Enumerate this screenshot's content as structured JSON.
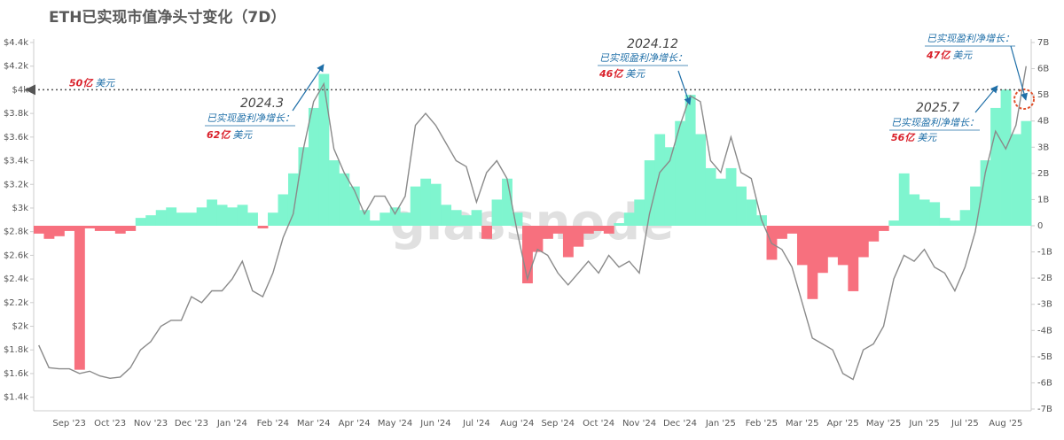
{
  "chart_data": {
    "type": "combo",
    "title": "ETH已实现市值净头寸变化（7D）",
    "watermark": "glassnode",
    "categories": [
      null,
      null,
      null,
      "Sep '23",
      null,
      null,
      null,
      "Oct '23",
      null,
      null,
      null,
      "Nov '23",
      null,
      null,
      null,
      "Dec '23",
      null,
      null,
      null,
      "Jan '24",
      null,
      null,
      null,
      "Feb '24",
      null,
      null,
      null,
      "Mar '24",
      null,
      null,
      null,
      "Apr '24",
      null,
      null,
      null,
      "May '24",
      null,
      null,
      null,
      "Jun '24",
      null,
      null,
      null,
      "Jul '24",
      null,
      null,
      null,
      "Aug '24",
      null,
      null,
      null,
      "Sep '24",
      null,
      null,
      null,
      "Oct '24",
      null,
      null,
      null,
      "Nov '24",
      null,
      null,
      null,
      "Dec '24",
      null,
      null,
      null,
      "Jan '25",
      null,
      null,
      null,
      "Feb '25",
      null,
      null,
      null,
      "Mar '25",
      null,
      null,
      null,
      "Apr '25",
      null,
      null,
      null,
      "May '25",
      null,
      null,
      null,
      "Jun '25",
      null,
      null,
      null,
      "Jul '25",
      null,
      null,
      null,
      "Aug '25",
      null,
      null
    ],
    "series": [
      {
        "type": "bar",
        "axis": "y2",
        "color": "#7ff5cf",
        "negative_color": "#f7707e",
        "values": [
          -0.3,
          -0.5,
          -0.4,
          -0.2,
          -5.5,
          -0.1,
          -0.2,
          -0.2,
          -0.3,
          -0.2,
          0.3,
          0.4,
          0.6,
          0.7,
          0.5,
          0.5,
          0.7,
          1.0,
          0.8,
          0.7,
          0.8,
          0.5,
          -0.1,
          0.5,
          1.2,
          2.0,
          3.0,
          4.5,
          5.8,
          2.5,
          2.0,
          1.5,
          0.6,
          0.2,
          0.5,
          0.7,
          0.5,
          1.5,
          1.8,
          1.6,
          0.8,
          0.6,
          0.4,
          0.6,
          -0.5,
          1.0,
          1.8,
          0.5,
          -2.2,
          -1.0,
          -0.5,
          -0.3,
          -1.2,
          -0.8,
          -0.3,
          -0.2,
          -0.3,
          0.1,
          0.5,
          1.0,
          2.5,
          3.5,
          3.0,
          4.0,
          5.0,
          3.5,
          2.2,
          1.8,
          2.2,
          1.5,
          1.0,
          0.4,
          -1.3,
          -0.5,
          -0.3,
          -1.5,
          -2.8,
          -1.8,
          -1.2,
          -1.5,
          -2.5,
          -1.2,
          -0.6,
          -0.2,
          0.2,
          2.0,
          1.2,
          1.0,
          0.9,
          0.3,
          0.2,
          0.6,
          1.5,
          2.5,
          4.5,
          5.2,
          3.5,
          4.0
        ]
      },
      {
        "type": "line",
        "color": "#8a8a8a",
        "values": [
          1840,
          1650,
          1640,
          1640,
          1600,
          1620,
          1580,
          1560,
          1570,
          1650,
          1800,
          1870,
          2000,
          2050,
          2050,
          2250,
          2200,
          2300,
          2300,
          2400,
          2550,
          2300,
          2250,
          2450,
          2750,
          2950,
          3500,
          3900,
          4050,
          3500,
          3300,
          3150,
          2950,
          3100,
          3100,
          2950,
          3100,
          3700,
          3800,
          3700,
          3550,
          3400,
          3350,
          3050,
          3300,
          3400,
          3250,
          2800,
          2400,
          2650,
          2600,
          2450,
          2350,
          2450,
          2550,
          2450,
          2600,
          2500,
          2550,
          2450,
          2950,
          3300,
          3400,
          3700,
          3950,
          3900,
          3400,
          3300,
          3600,
          3300,
          3250,
          2900,
          2700,
          2650,
          2500,
          2200,
          1900,
          1850,
          1800,
          1600,
          1550,
          1800,
          1850,
          2000,
          2400,
          2600,
          2550,
          2650,
          2500,
          2450,
          2300,
          2500,
          2800,
          3300,
          3650,
          3500,
          3700,
          4200
        ]
      }
    ],
    "ylim": [
      1300,
      4400
    ],
    "yticks": [
      {
        "value": 1400,
        "label": "$1.4k"
      },
      {
        "value": 1600,
        "label": "$1.6k"
      },
      {
        "value": 1800,
        "label": "$1.8k"
      },
      {
        "value": 2000,
        "label": "$2k"
      },
      {
        "value": 2200,
        "label": "$2.2k"
      },
      {
        "value": 2400,
        "label": "$2.4k"
      },
      {
        "value": 2600,
        "label": "$2.6k"
      },
      {
        "value": 2800,
        "label": "$2.8k"
      },
      {
        "value": 3000,
        "label": "$3k"
      },
      {
        "value": 3200,
        "label": "$3.2k"
      },
      {
        "value": 3400,
        "label": "$3.4k"
      },
      {
        "value": 3600,
        "label": "$3.6k"
      },
      {
        "value": 3800,
        "label": "$3.8k"
      },
      {
        "value": 4000,
        "label": "$4k"
      },
      {
        "value": 4200,
        "label": "$4.2k"
      },
      {
        "value": 4400,
        "label": "$4.4k"
      }
    ],
    "y2lim": [
      -7,
      7
    ],
    "y2ticks": [
      {
        "value": 7,
        "label": "7B"
      },
      {
        "value": 6,
        "label": "6B"
      },
      {
        "value": 5,
        "label": "5B"
      },
      {
        "value": 4,
        "label": "4B"
      },
      {
        "value": 3,
        "label": "3B"
      },
      {
        "value": 2,
        "label": "2B"
      },
      {
        "value": 1,
        "label": "1B"
      },
      0,
      {
        "value": -1,
        "label": "-1B"
      },
      {
        "value": -2,
        "label": "-2B"
      },
      {
        "value": -3,
        "label": "-3B"
      },
      {
        "value": -4,
        "label": "-4B"
      },
      {
        "value": -5,
        "label": "-5B"
      },
      {
        "value": -6,
        "label": "-6B"
      },
      {
        "value": -7,
        "label": "-7B"
      }
    ],
    "reference_line": {
      "y": 4000,
      "amount": "50亿",
      "unit": "美元"
    },
    "annotations": [
      {
        "date": "2024.3",
        "text": "已实现盈利净增长：",
        "amount": "62亿",
        "unit": "美元"
      },
      {
        "date": "2024.12",
        "text": "已实现盈利净增长：",
        "amount": "46亿",
        "unit": "美元"
      },
      {
        "date": "2025.7",
        "text": "已实现盈利净增长：",
        "amount": "56亿",
        "unit": "美元"
      },
      {
        "text": "已实现盈利净增长：",
        "amount": "47亿",
        "unit": "美元"
      }
    ]
  }
}
